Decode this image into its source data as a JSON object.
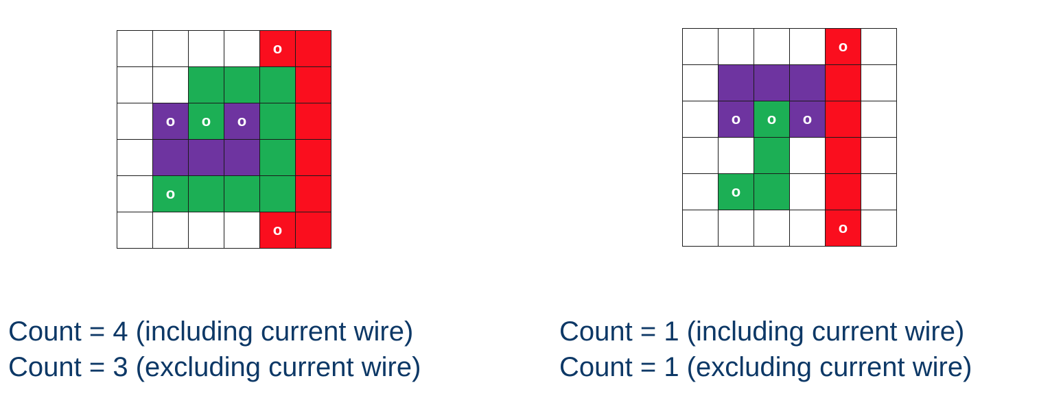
{
  "colors": {
    "empty": "#ffffff",
    "red": "#fa0e1e",
    "green": "#1caf55",
    "purple": "#6e34a0",
    "caption_text": "#0d3866",
    "grid_line": "#1a1a1a"
  },
  "panels": [
    {
      "grid": [
        [
          "empty",
          "empty",
          "empty",
          "empty",
          "red",
          "red"
        ],
        [
          "empty",
          "empty",
          "green",
          "green",
          "green",
          "red"
        ],
        [
          "empty",
          "purple",
          "green",
          "purple",
          "green",
          "red"
        ],
        [
          "empty",
          "purple",
          "purple",
          "purple",
          "green",
          "red"
        ],
        [
          "empty",
          "green",
          "green",
          "green",
          "green",
          "red"
        ],
        [
          "empty",
          "empty",
          "empty",
          "empty",
          "red",
          "red"
        ]
      ],
      "marks": [
        [
          "",
          "",
          "",
          "",
          "o",
          ""
        ],
        [
          "",
          "",
          "",
          "",
          "",
          ""
        ],
        [
          "",
          "o",
          "o",
          "o",
          "",
          ""
        ],
        [
          "",
          "",
          "",
          "",
          "",
          ""
        ],
        [
          "",
          "o",
          "",
          "",
          "",
          ""
        ],
        [
          "",
          "",
          "",
          "",
          "o",
          ""
        ]
      ],
      "caption_including": "Count = 4 (including current wire)",
      "caption_excluding": "Count = 3 (excluding current wire)"
    },
    {
      "grid": [
        [
          "empty",
          "empty",
          "empty",
          "empty",
          "red",
          "empty"
        ],
        [
          "empty",
          "purple",
          "purple",
          "purple",
          "red",
          "empty"
        ],
        [
          "empty",
          "purple",
          "green",
          "purple",
          "red",
          "empty"
        ],
        [
          "empty",
          "empty",
          "green",
          "empty",
          "red",
          "empty"
        ],
        [
          "empty",
          "green",
          "green",
          "empty",
          "red",
          "empty"
        ],
        [
          "empty",
          "empty",
          "empty",
          "empty",
          "red",
          "empty"
        ]
      ],
      "marks": [
        [
          "",
          "",
          "",
          "",
          "o",
          ""
        ],
        [
          "",
          "",
          "",
          "",
          "",
          ""
        ],
        [
          "",
          "o",
          "o",
          "o",
          "",
          ""
        ],
        [
          "",
          "",
          "",
          "",
          "",
          ""
        ],
        [
          "",
          "o",
          "",
          "",
          "",
          ""
        ],
        [
          "",
          "",
          "",
          "",
          "o",
          ""
        ]
      ],
      "caption_including": "Count = 1 (including current wire)",
      "caption_excluding": "Count = 1 (excluding current wire)"
    }
  ]
}
